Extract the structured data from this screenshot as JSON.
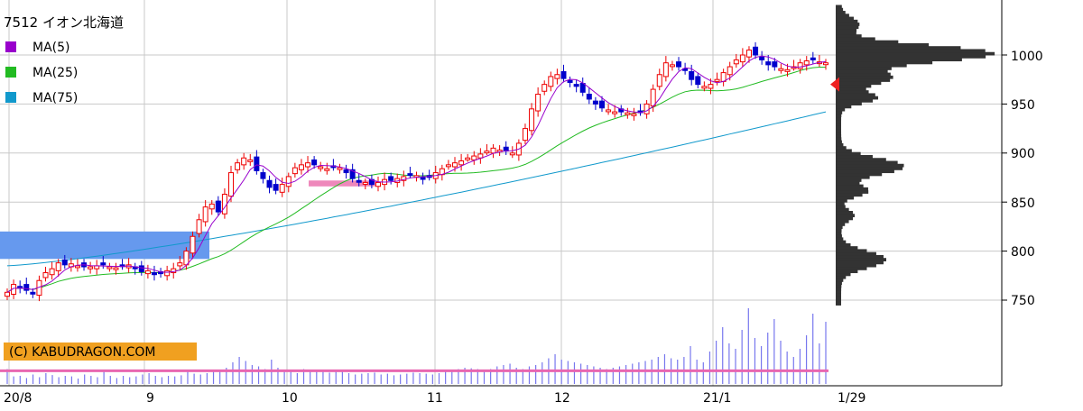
{
  "chart_data": {
    "type": "candlestick",
    "ticker_title": "7512 イオン北海道",
    "legend": [
      {
        "label": "MA(5)",
        "color": "#9900cc"
      },
      {
        "label": "MA(25)",
        "color": "#22bb22"
      },
      {
        "label": "MA(75)",
        "color": "#1199cc"
      }
    ],
    "y_axis": {
      "ticks": [
        "750",
        "800",
        "850",
        "900",
        "950",
        "1000"
      ],
      "ylim": [
        725,
        1055
      ]
    },
    "x_axis": {
      "labels": [
        "20/8",
        "9",
        "10",
        "11",
        "12",
        "21/1",
        "1/29"
      ]
    },
    "copyright": "(C) KABUDRAGON.COM",
    "colors": {
      "up": "#ee0000",
      "down": "#0000cc",
      "ma5": "#9900cc",
      "ma25": "#22bb22",
      "ma75": "#1199cc",
      "grid": "#c8c8c8",
      "profile": "#333333",
      "marker": "#ee2222",
      "zone_blue": "#6699ee",
      "zone_pink": "#ee88bb"
    },
    "candles_close": [
      758,
      766,
      763,
      760,
      757,
      770,
      778,
      782,
      788,
      786,
      787,
      785,
      784,
      784,
      785,
      786,
      784,
      783,
      785,
      786,
      782,
      779,
      780,
      776,
      777,
      780,
      782,
      788,
      800,
      815,
      832,
      845,
      848,
      840,
      858,
      880,
      890,
      895,
      893,
      882,
      874,
      865,
      862,
      868,
      876,
      885,
      888,
      890,
      888,
      886,
      884,
      886,
      885,
      880,
      874,
      871,
      870,
      868,
      870,
      873,
      872,
      874,
      876,
      878,
      877,
      874,
      876,
      880,
      884,
      888,
      890,
      892,
      895,
      897,
      899,
      902,
      905,
      903,
      902,
      900,
      910,
      925,
      945,
      960,
      970,
      978,
      980,
      976,
      972,
      968,
      962,
      955,
      950,
      946,
      944,
      942,
      942,
      941,
      940,
      942,
      950,
      965,
      980,
      992,
      990,
      988,
      985,
      975,
      970,
      968,
      970,
      975,
      982,
      988,
      995,
      1000,
      1005,
      1000,
      995,
      990,
      988,
      986,
      985,
      988,
      992,
      994,
      995,
      993,
      992
    ],
    "ma25_end": 992,
    "ma75_end": 942,
    "volume_baseline_level": 0.42,
    "volume_levels": [
      0.55,
      0.28,
      0.3,
      0.22,
      0.35,
      0.25,
      0.4,
      0.33,
      0.25,
      0.3,
      0.28,
      0.2,
      0.35,
      0.3,
      0.25,
      0.45,
      0.3,
      0.22,
      0.3,
      0.25,
      0.28,
      0.35,
      0.4,
      0.3,
      0.25,
      0.3,
      0.28,
      0.32,
      0.45,
      0.38,
      0.35,
      0.4,
      0.5,
      0.45,
      0.6,
      0.8,
      1.0,
      0.85,
      0.7,
      0.65,
      0.55,
      0.9,
      0.6,
      0.5,
      0.45,
      0.4,
      0.55,
      0.5,
      0.48,
      0.45,
      0.42,
      0.5,
      0.45,
      0.4,
      0.35,
      0.38,
      0.4,
      0.42,
      0.35,
      0.38,
      0.32,
      0.35,
      0.38,
      0.42,
      0.4,
      0.38,
      0.35,
      0.4,
      0.45,
      0.5,
      0.55,
      0.6,
      0.58,
      0.55,
      0.5,
      0.55,
      0.65,
      0.7,
      0.75,
      0.6,
      0.55,
      0.65,
      0.7,
      0.8,
      0.95,
      1.1,
      0.9,
      0.85,
      0.8,
      0.75,
      0.7,
      0.65,
      0.6,
      0.55,
      0.6,
      0.65,
      0.7,
      0.75,
      0.8,
      0.85,
      0.9,
      1.0,
      1.1,
      0.95,
      0.9,
      1.0,
      1.4,
      0.9,
      0.8,
      1.2,
      1.6,
      2.1,
      1.5,
      1.3,
      2.0,
      2.8,
      1.7,
      1.4,
      1.9,
      2.4,
      1.6,
      1.2,
      1.0,
      1.3,
      1.8,
      2.6,
      1.5,
      2.3
    ]
  }
}
